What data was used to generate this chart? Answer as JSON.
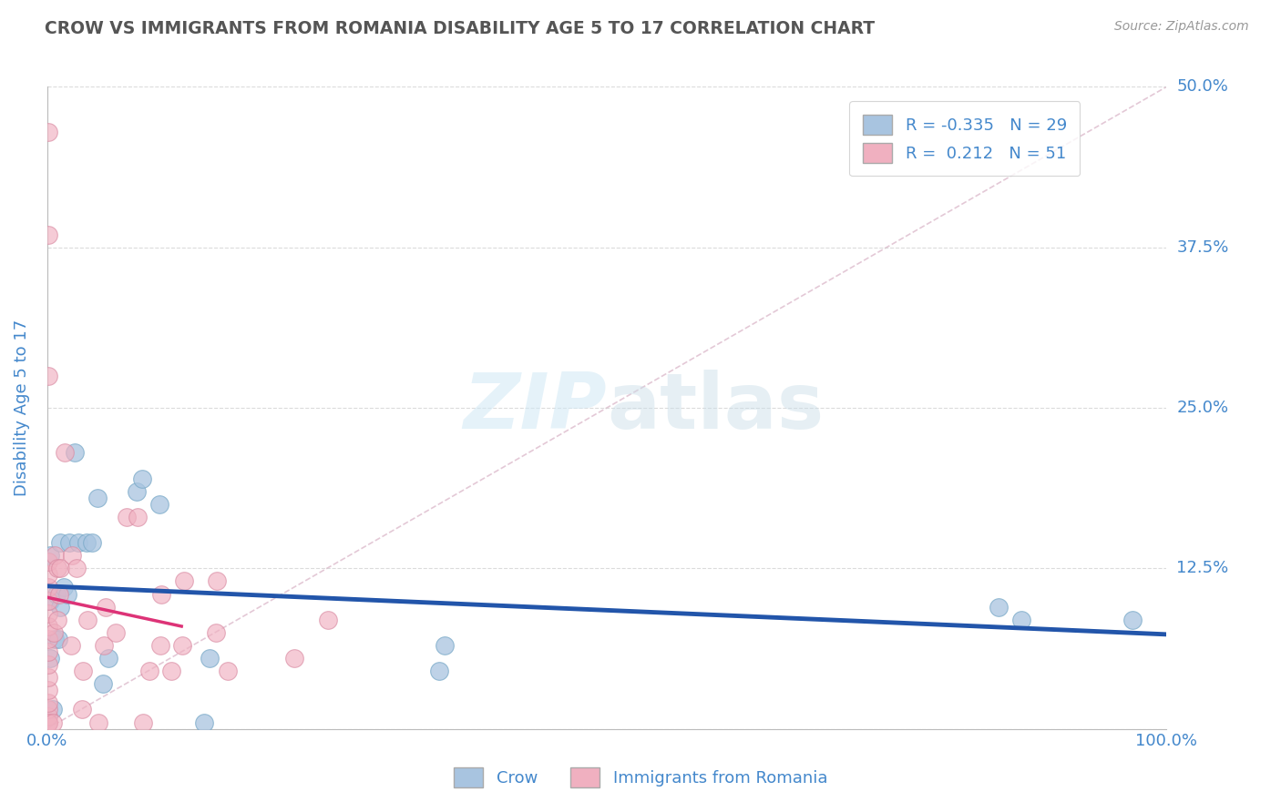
{
  "title": "CROW VS IMMIGRANTS FROM ROMANIA DISABILITY AGE 5 TO 17 CORRELATION CHART",
  "source": "Source: ZipAtlas.com",
  "ylabel": "Disability Age 5 to 17",
  "xlim": [
    0,
    1.0
  ],
  "ylim": [
    0,
    0.5
  ],
  "xticks": [
    0.0,
    0.125,
    0.25,
    0.375,
    0.5,
    0.625,
    0.75,
    0.875,
    1.0
  ],
  "xticklabels": [
    "0.0%",
    "",
    "",
    "",
    "",
    "",
    "",
    "",
    "100.0%"
  ],
  "ytick_positions": [
    0.0,
    0.125,
    0.25,
    0.375,
    0.5
  ],
  "yticklabels": [
    "",
    "12.5%",
    "25.0%",
    "37.5%",
    "50.0%"
  ],
  "crow_color": "#a8c4e0",
  "crow_edge_color": "#7aaac8",
  "crow_line_color": "#2255aa",
  "romania_color": "#f0b0c0",
  "romania_edge_color": "#d888a0",
  "romania_line_color": "#dd3377",
  "watermark_color": "#d0e8f5",
  "R_crow": -0.335,
  "N_crow": 29,
  "R_romania": 0.212,
  "N_romania": 51,
  "crow_scatter_x": [
    0.003,
    0.003,
    0.003,
    0.005,
    0.007,
    0.008,
    0.01,
    0.012,
    0.012,
    0.015,
    0.018,
    0.02,
    0.025,
    0.028,
    0.035,
    0.04,
    0.045,
    0.05,
    0.055,
    0.08,
    0.085,
    0.1,
    0.14,
    0.145,
    0.35,
    0.355,
    0.85,
    0.87,
    0.97
  ],
  "crow_scatter_y": [
    0.055,
    0.1,
    0.135,
    0.015,
    0.07,
    0.105,
    0.07,
    0.095,
    0.145,
    0.11,
    0.105,
    0.145,
    0.215,
    0.145,
    0.145,
    0.145,
    0.18,
    0.035,
    0.055,
    0.185,
    0.195,
    0.175,
    0.005,
    0.055,
    0.045,
    0.065,
    0.095,
    0.085,
    0.085
  ],
  "romania_scatter_x": [
    0.001,
    0.001,
    0.001,
    0.001,
    0.001,
    0.001,
    0.001,
    0.001,
    0.001,
    0.001,
    0.001,
    0.001,
    0.001,
    0.001,
    0.001,
    0.001,
    0.001,
    0.001,
    0.001,
    0.005,
    0.006,
    0.007,
    0.009,
    0.009,
    0.011,
    0.012,
    0.016,
    0.021,
    0.022,
    0.026,
    0.031,
    0.032,
    0.036,
    0.046,
    0.051,
    0.052,
    0.061,
    0.071,
    0.081,
    0.086,
    0.091,
    0.101,
    0.102,
    0.111,
    0.121,
    0.122,
    0.151,
    0.152,
    0.161,
    0.221,
    0.251
  ],
  "romania_scatter_y": [
    0.005,
    0.01,
    0.015,
    0.02,
    0.03,
    0.04,
    0.05,
    0.06,
    0.07,
    0.08,
    0.09,
    0.1,
    0.11,
    0.12,
    0.13,
    0.005,
    0.275,
    0.385,
    0.465,
    0.005,
    0.075,
    0.135,
    0.085,
    0.125,
    0.105,
    0.125,
    0.215,
    0.065,
    0.135,
    0.125,
    0.015,
    0.045,
    0.085,
    0.005,
    0.065,
    0.095,
    0.075,
    0.165,
    0.165,
    0.005,
    0.045,
    0.065,
    0.105,
    0.045,
    0.065,
    0.115,
    0.075,
    0.115,
    0.045,
    0.055,
    0.085
  ],
  "diag_line_color": "#ddbbcc",
  "grid_color": "#cccccc",
  "title_color": "#555555",
  "axis_label_color": "#4488cc",
  "tick_label_color": "#4488cc"
}
